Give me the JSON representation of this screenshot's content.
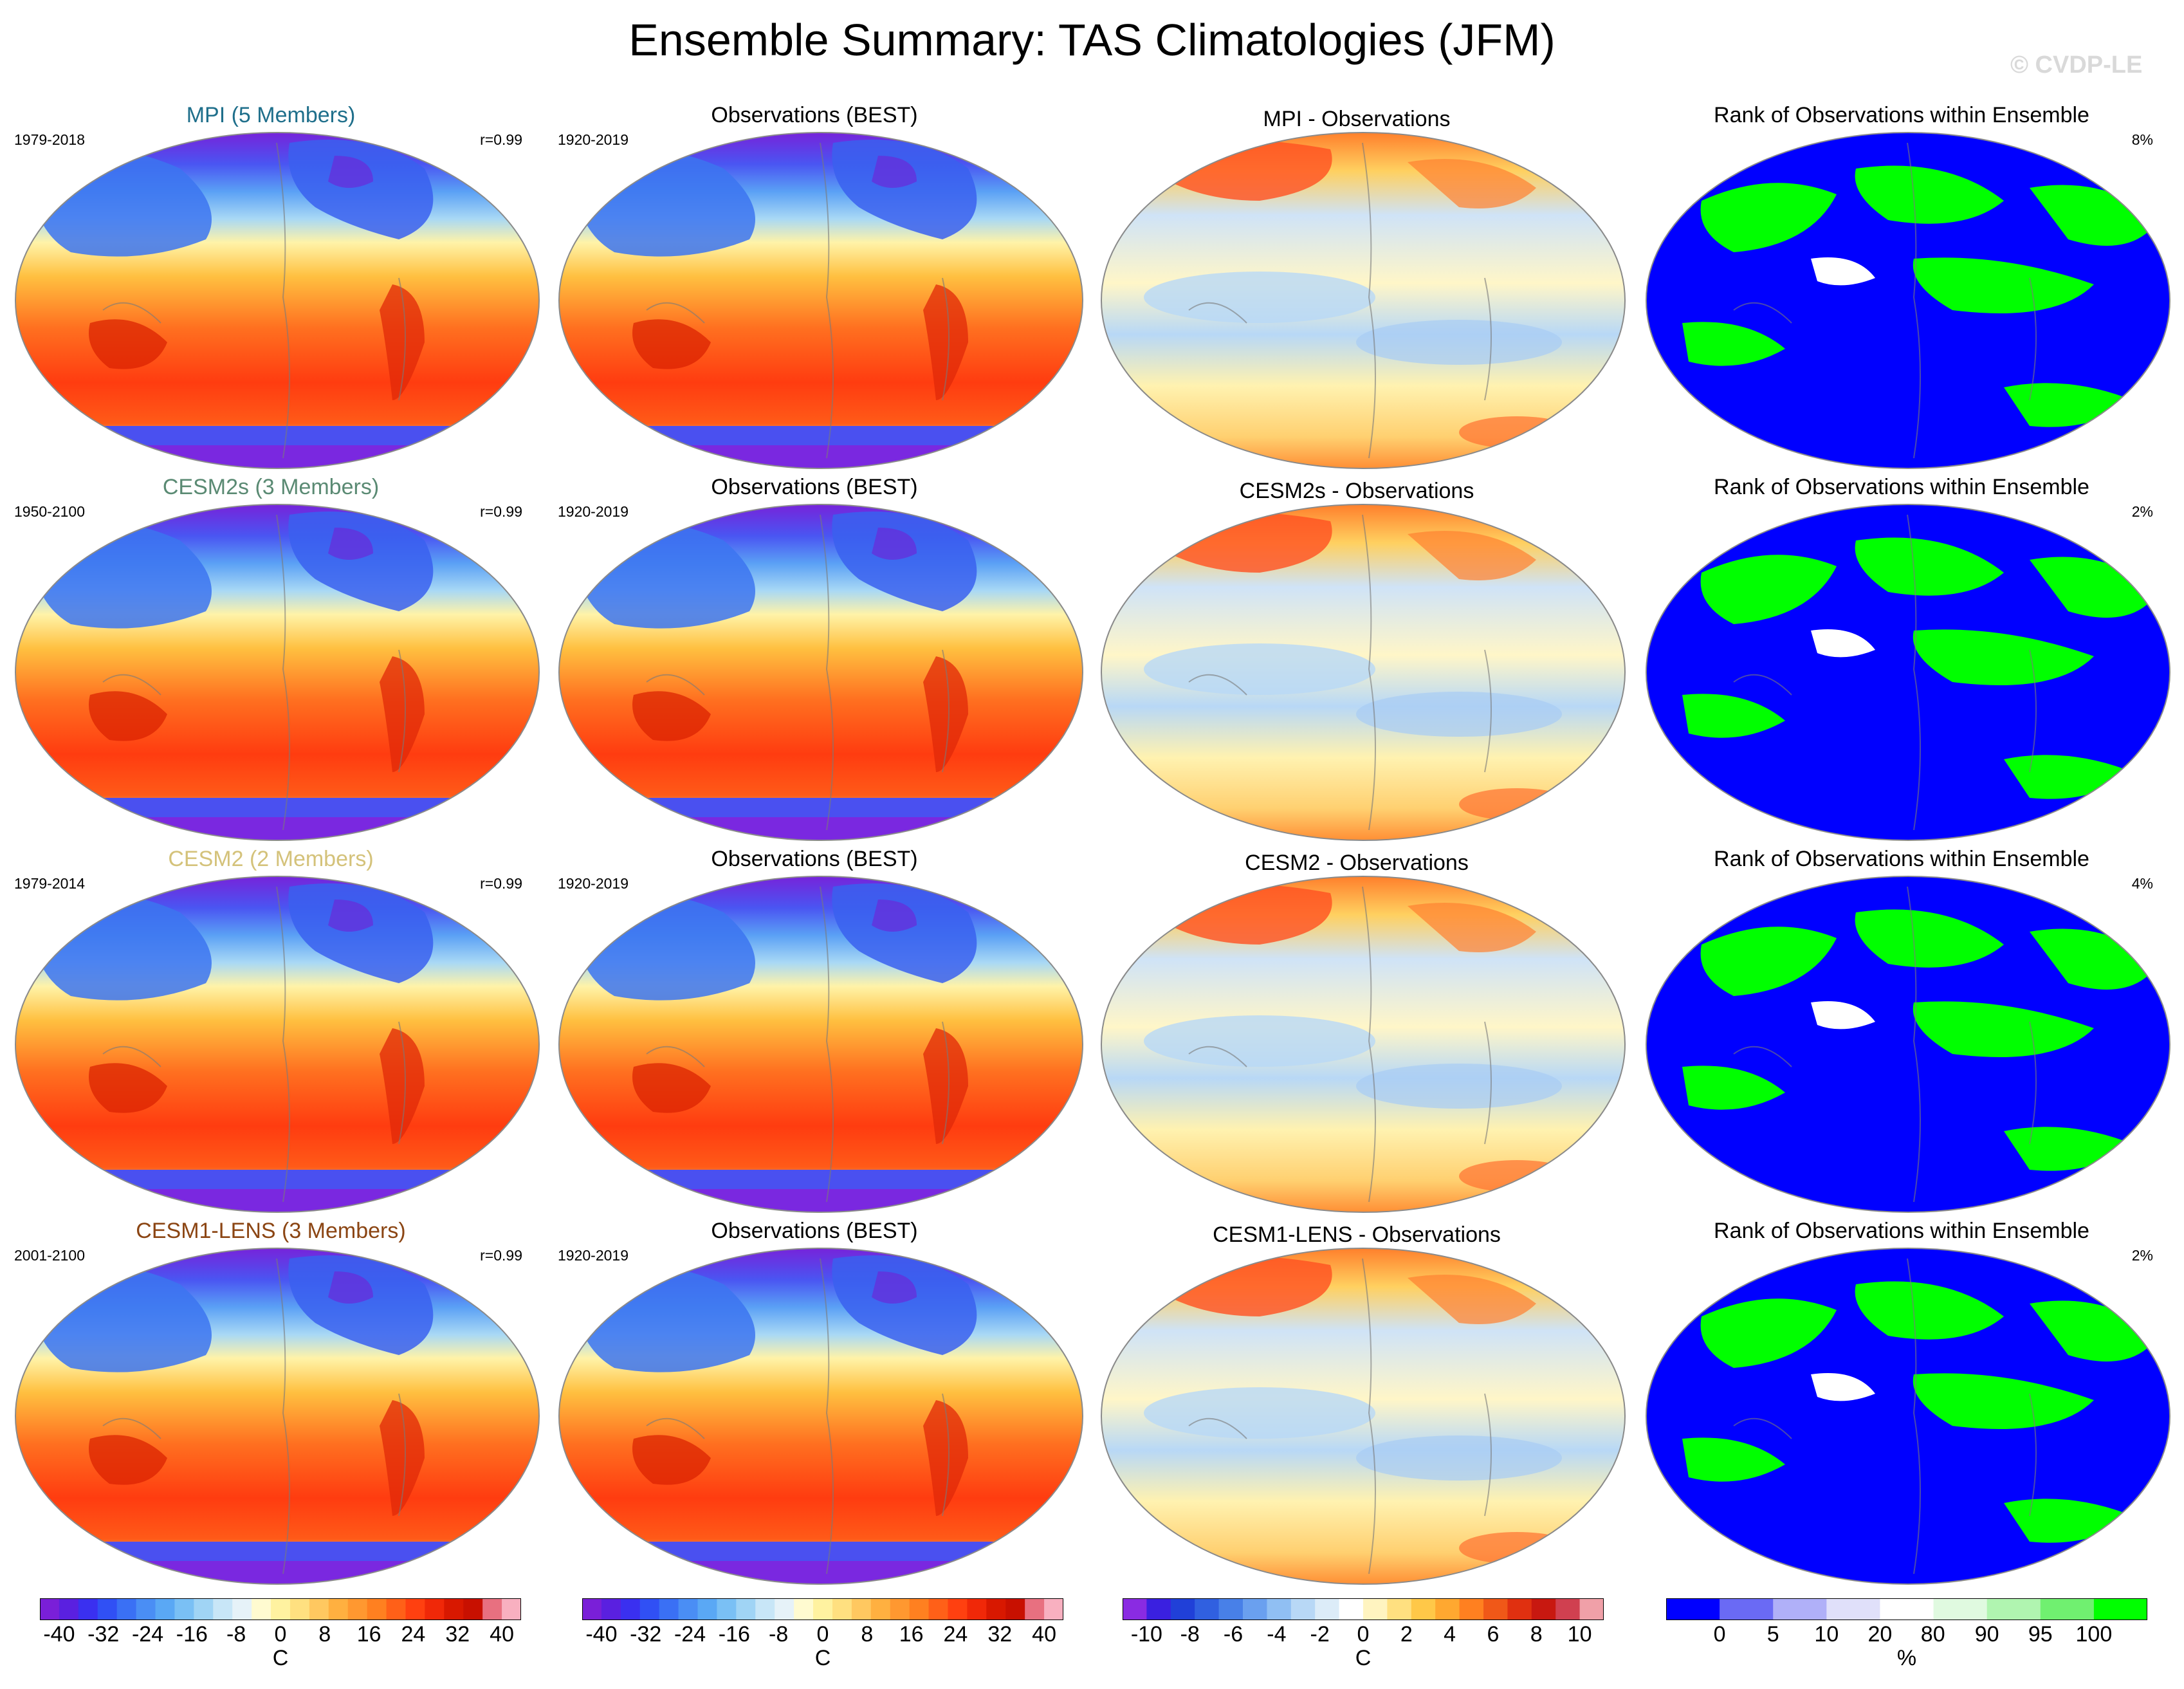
{
  "title": "Ensemble Summary: TAS Climatologies (JFM)",
  "watermark": "© CVDP-LE",
  "rows": [
    {
      "model": {
        "label": "MPI (5 Members)",
        "color": "#1f6f8b",
        "years": "1979-2018",
        "corr": "r=0.99"
      },
      "obs": {
        "label": "Observations (BEST)",
        "years": "1920-2019"
      },
      "diff": {
        "label": "MPI - Observations"
      },
      "rank": {
        "label": "Rank of Observations within Ensemble",
        "pct": "8%"
      }
    },
    {
      "model": {
        "label": "CESM2s (3 Members)",
        "color": "#5a8a73",
        "years": "1950-2100",
        "corr": "r=0.99"
      },
      "obs": {
        "label": "Observations (BEST)",
        "years": "1920-2019"
      },
      "diff": {
        "label": "CESM2s - Observations"
      },
      "rank": {
        "label": "Rank of Observations within Ensemble",
        "pct": "2%"
      }
    },
    {
      "model": {
        "label": "CESM2 (2 Members)",
        "color": "#d4c27a",
        "years": "1979-2014",
        "corr": "r=0.99"
      },
      "obs": {
        "label": "Observations (BEST)",
        "years": "1920-2019"
      },
      "diff": {
        "label": "CESM2 - Observations"
      },
      "rank": {
        "label": "Rank of Observations within Ensemble",
        "pct": "4%"
      }
    },
    {
      "model": {
        "label": "CESM1-LENS (3 Members)",
        "color": "#8b4513",
        "years": "2001-2100",
        "corr": "r=0.99"
      },
      "obs": {
        "label": "Observations (BEST)",
        "years": "1920-2019"
      },
      "diff": {
        "label": "CESM1-LENS - Observations"
      },
      "rank": {
        "label": "Rank of Observations within Ensemble",
        "pct": "2%"
      }
    }
  ],
  "colorbars": [
    {
      "name": "model-colorbar",
      "ticks": [
        "-40",
        "-32",
        "-24",
        "-16",
        "-8",
        "0",
        "8",
        "16",
        "24",
        "32",
        "40"
      ],
      "unit": "C",
      "colors": [
        "#7a1fd8",
        "#5a20e0",
        "#3a30f0",
        "#3050f5",
        "#3a70f5",
        "#4a8ef5",
        "#5aa8f5",
        "#7ac0f5",
        "#a0d4f5",
        "#c8e6f7",
        "#e6f2f8",
        "#fffbd0",
        "#fff2a0",
        "#ffe080",
        "#ffc860",
        "#ffb040",
        "#ff9830",
        "#ff8020",
        "#ff6018",
        "#ff4010",
        "#f02808",
        "#d81800",
        "#c81000",
        "#e87080",
        "#f8b0c0"
      ]
    },
    {
      "name": "obs-colorbar",
      "ticks": [
        "-40",
        "-32",
        "-24",
        "-16",
        "-8",
        "0",
        "8",
        "16",
        "24",
        "32",
        "40"
      ],
      "unit": "C",
      "colors": [
        "#7a1fd8",
        "#5a20e0",
        "#3a30f0",
        "#3050f5",
        "#3a70f5",
        "#4a8ef5",
        "#5aa8f5",
        "#7ac0f5",
        "#a0d4f5",
        "#c8e6f7",
        "#e6f2f8",
        "#fffbd0",
        "#fff2a0",
        "#ffe080",
        "#ffc860",
        "#ffb040",
        "#ff9830",
        "#ff8020",
        "#ff6018",
        "#ff4010",
        "#f02808",
        "#d81800",
        "#c81000",
        "#e87080",
        "#f8b0c0"
      ]
    },
    {
      "name": "diff-colorbar",
      "ticks": [
        "-10",
        "-8",
        "-6",
        "-4",
        "-2",
        "0",
        "2",
        "4",
        "6",
        "8",
        "10"
      ],
      "unit": "C",
      "colors": [
        "#8a2be2",
        "#3a20e0",
        "#2040d8",
        "#3060e0",
        "#4880e8",
        "#6aa0ef",
        "#90bff3",
        "#b8d8f6",
        "#dcecf8",
        "#ffffff",
        "#fff4c0",
        "#ffe080",
        "#ffc848",
        "#ffa830",
        "#ff8020",
        "#f05818",
        "#e03010",
        "#c81810",
        "#d04050",
        "#f0a0a8"
      ]
    },
    {
      "name": "rank-colorbar",
      "ticks": [
        "0",
        "5",
        "10",
        "20",
        "80",
        "90",
        "95",
        "100"
      ],
      "unit": "%",
      "colors": [
        "#0000ff",
        "#6a6af5",
        "#b0b0f8",
        "#e0e0fa",
        "#ffffff",
        "#e0fae0",
        "#b0f5b0",
        "#70f070",
        "#00ff00"
      ]
    }
  ]
}
